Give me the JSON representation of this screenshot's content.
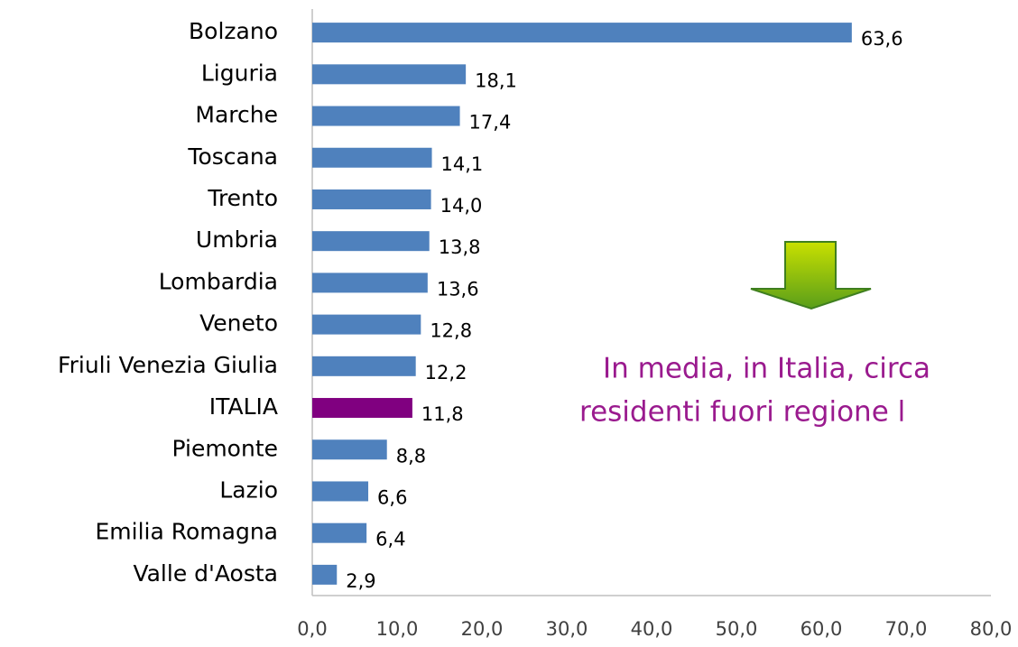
{
  "chart_data": {
    "type": "hbar",
    "categories": [
      "Bolzano",
      "Liguria",
      "Marche",
      "Toscana",
      "Trento",
      "Umbria",
      "Lombardia",
      "Veneto",
      "Friuli Venezia Giulia",
      "ITALIA",
      "Piemonte",
      "Lazio",
      "Emilia Romagna",
      "Valle d'Aosta"
    ],
    "values": [
      63.6,
      18.1,
      17.4,
      14.1,
      14.0,
      13.8,
      13.6,
      12.8,
      12.2,
      11.8,
      8.8,
      6.6,
      6.4,
      2.9
    ],
    "value_labels": [
      "63,6",
      "18,1",
      "17,4",
      "14,1",
      "14,0",
      "13,8",
      "13,6",
      "12,8",
      "12,2",
      "11,8",
      "8,8",
      "6,6",
      "6,4",
      "2,9"
    ],
    "colors": [
      "#4f81bd",
      "#4f81bd",
      "#4f81bd",
      "#4f81bd",
      "#4f81bd",
      "#4f81bd",
      "#4f81bd",
      "#4f81bd",
      "#4f81bd",
      "#800080",
      "#4f81bd",
      "#4f81bd",
      "#4f81bd",
      "#4f81bd"
    ],
    "xlim": [
      0,
      80
    ],
    "xticks": [
      {
        "value": 0,
        "label": "0,0"
      },
      {
        "value": 10,
        "label": "10,0"
      },
      {
        "value": 20,
        "label": "20,0"
      },
      {
        "value": 30,
        "label": "30,0"
      },
      {
        "value": 40,
        "label": "40,0"
      },
      {
        "value": 50,
        "label": "50,0"
      },
      {
        "value": 60,
        "label": "60,0"
      },
      {
        "value": 70,
        "label": "70,0"
      },
      {
        "value": 80,
        "label": "80,0"
      }
    ],
    "annotations": [
      "In media, in Italia, circa",
      "residenti fuori regione l"
    ]
  }
}
